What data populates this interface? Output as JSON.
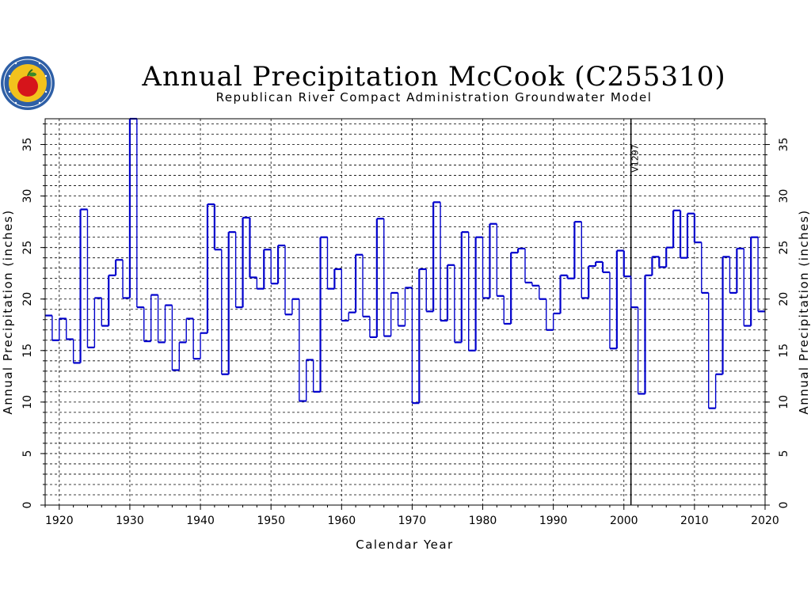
{
  "chart_data": {
    "type": "line",
    "step": "histogram",
    "title": "Annual Precipitation McCook (C255310)",
    "subtitle": "Republican River Compact Administration Groundwater Model",
    "xlabel": "Calendar Year",
    "ylabel": "Annual Precipitation (inches)",
    "ylabel_right": "Annual Precipitation (inches)",
    "xlim": [
      1918,
      2020
    ],
    "ylim": [
      0,
      37.5
    ],
    "x_ticks": [
      "1920",
      "1930",
      "1940",
      "1950",
      "1960",
      "1970",
      "1980",
      "1990",
      "2000",
      "2010",
      "2020"
    ],
    "y_ticks": [
      "0",
      "5",
      "10",
      "15",
      "20",
      "25",
      "30",
      "35"
    ],
    "vertical_grid": "dashed every 10 years",
    "horizontal_grid": "dashed every 1 inch",
    "annotation": {
      "text": "V1297",
      "x": 2001
    },
    "colors": {
      "series": "#0000cc",
      "grid": "#000000"
    },
    "years": [
      1918,
      1919,
      1920,
      1921,
      1922,
      1923,
      1924,
      1925,
      1926,
      1927,
      1928,
      1929,
      1930,
      1931,
      1932,
      1933,
      1934,
      1935,
      1936,
      1937,
      1938,
      1939,
      1940,
      1941,
      1942,
      1943,
      1944,
      1945,
      1946,
      1947,
      1948,
      1949,
      1950,
      1951,
      1952,
      1953,
      1954,
      1955,
      1956,
      1957,
      1958,
      1959,
      1960,
      1961,
      1962,
      1963,
      1964,
      1965,
      1966,
      1967,
      1968,
      1969,
      1970,
      1971,
      1972,
      1973,
      1974,
      1975,
      1976,
      1977,
      1978,
      1979,
      1980,
      1981,
      1982,
      1983,
      1984,
      1985,
      1986,
      1987,
      1988,
      1989,
      1990,
      1991,
      1992,
      1993,
      1994,
      1995,
      1996,
      1997,
      1998,
      1999,
      2000,
      2001,
      2002,
      2003,
      2004,
      2005,
      2006,
      2007,
      2008,
      2009,
      2010,
      2011,
      2012,
      2013,
      2014,
      2015,
      2016,
      2017,
      2018,
      2019
    ],
    "values": [
      18.4,
      16.0,
      18.1,
      16.1,
      13.8,
      28.7,
      15.3,
      20.1,
      17.4,
      22.3,
      23.8,
      20.1,
      37.5,
      19.2,
      15.9,
      20.4,
      15.8,
      19.4,
      13.1,
      15.8,
      18.1,
      14.2,
      16.7,
      29.2,
      24.8,
      12.7,
      26.5,
      19.2,
      27.9,
      22.1,
      21.0,
      24.8,
      21.5,
      25.2,
      18.5,
      20.0,
      10.1,
      14.1,
      11.0,
      26.0,
      21.0,
      22.9,
      17.9,
      18.7,
      24.3,
      18.3,
      16.3,
      27.8,
      16.4,
      20.6,
      17.4,
      21.1,
      9.9,
      22.9,
      18.8,
      29.4,
      17.9,
      23.3,
      15.8,
      26.5,
      15.0,
      26.0,
      20.1,
      27.3,
      20.3,
      17.6,
      24.5,
      24.9,
      21.6,
      21.3,
      20.0,
      17.0,
      18.6,
      22.3,
      22.0,
      27.5,
      20.1,
      23.2,
      23.6,
      22.6,
      15.2,
      24.7,
      22.2,
      19.2,
      10.8,
      22.3,
      24.1,
      23.1,
      25.0,
      28.6,
      24.0,
      28.3,
      25.5,
      20.6,
      9.4,
      12.7,
      24.1,
      20.6,
      24.9,
      17.4,
      26.0,
      18.8
    ]
  }
}
